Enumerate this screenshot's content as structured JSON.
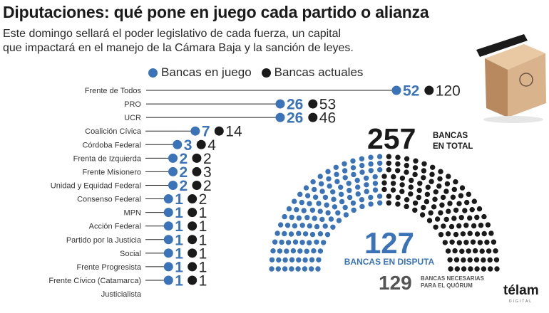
{
  "title": "Diputaciones: qué pone en juego cada partido o alianza",
  "subtitle_line1": "Este domingo sellará el poder legislativo de cada fuerza, un capital",
  "subtitle_line2": "que impactará en el manejo de la Cámara Baja y la sanción de leyes.",
  "brand": "télam",
  "brand_sub": "DIGITAL",
  "colors": {
    "blue": "#3a73b8",
    "black": "#1a1a1a",
    "line": "#222222",
    "gray": "#555555",
    "box": "#d9b38c",
    "box_dark": "#b8895e"
  },
  "chart_data": [
    {
      "type": "scatter",
      "title": "",
      "legend": [
        "Bancas en juego",
        "Bancas actuales"
      ],
      "legend_position": "top",
      "categories": [
        "Frente de Todos",
        "PRO",
        "UCR",
        "Coalición Cívica",
        "Córdoba Federal",
        "Frenta de Izquierda",
        "Frente Misionero",
        "Unidad y Equidad Federal",
        "Consenso Federal",
        "MPN",
        "Acción Federal",
        "Partido por la Justicia",
        "Social",
        "Frente Progresista",
        "Frente Cívico (Catamarca)",
        "Justicialista"
      ],
      "series": [
        {
          "name": "Bancas en juego",
          "values": [
            52,
            26,
            26,
            7,
            3,
            2,
            2,
            2,
            1,
            1,
            1,
            1,
            1,
            1,
            1,
            null
          ]
        },
        {
          "name": "Bancas actuales",
          "values": [
            120,
            53,
            46,
            14,
            4,
            2,
            3,
            2,
            2,
            1,
            1,
            1,
            1,
            1,
            1,
            null
          ]
        }
      ]
    },
    {
      "type": "pie",
      "title": "257",
      "title_label_line1": "BANCAS",
      "title_label_line2": "EN TOTAL",
      "total": 257,
      "in_dispute": 127,
      "in_dispute_label": "BANCAS EN DISPUTA",
      "quorum": 129,
      "quorum_label_line1": "BANCAS NECESARIAS",
      "quorum_label_line2": "PARA EL QUÓRUM"
    }
  ]
}
